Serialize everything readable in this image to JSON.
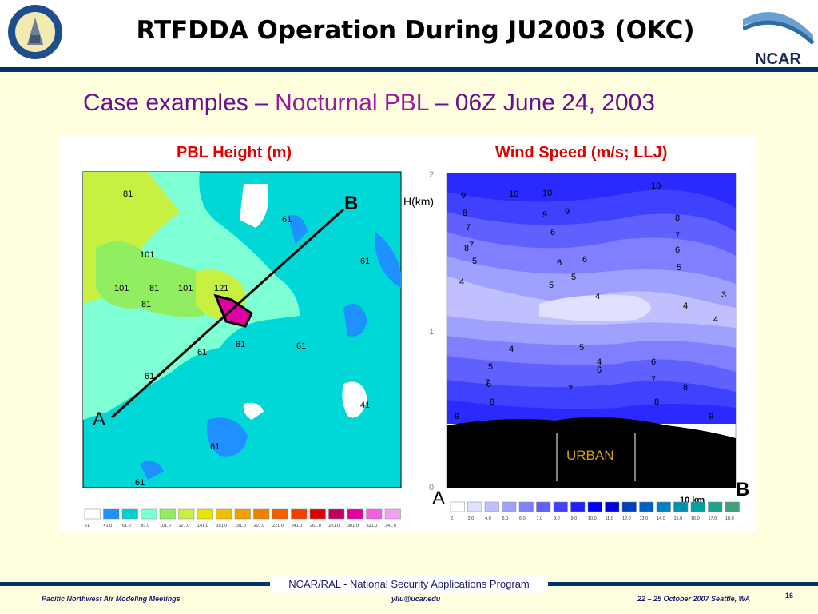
{
  "header": {
    "title": "RTFDDA Operation During JU2003 (OKC)",
    "logo_text": "NCAR"
  },
  "subtitle": {
    "part1": "Case examples – ",
    "part2": "Nocturnal PBL",
    "part3": " – 06Z June 24, 2003"
  },
  "left_panel": {
    "label": "PBL Height (m)",
    "contour_labels": [
      "81",
      "61",
      "101",
      "81",
      "101",
      "121",
      "81",
      "81",
      "61",
      "61",
      "61",
      "41",
      "61",
      "61",
      "101",
      "61"
    ],
    "endpoint_a": "A",
    "endpoint_b": "B",
    "colorbar": [
      "21.",
      "41.0",
      "61.0",
      "81.0",
      "101.0",
      "121.0",
      "141.0",
      "161.0",
      "181.0",
      "201.0",
      "221.0",
      "241.0",
      "261.0",
      "281.0",
      "301.0",
      "321.0",
      "341.0"
    ]
  },
  "right_panel": {
    "label": "Wind Speed (m/s; LLJ)",
    "y_axis_label": "H(km)",
    "y_ticks": [
      "2",
      "1",
      "0"
    ],
    "urban_label": "URBAN",
    "scale_label": "10 km",
    "endpoint_a": "A",
    "endpoint_b": "B",
    "contour_labels": [
      "9",
      "10",
      "10",
      "10",
      "8",
      "9",
      "9",
      "7",
      "8",
      "8",
      "6",
      "7",
      "7",
      "5",
      "6",
      "6",
      "6",
      "4",
      "5",
      "5",
      "5",
      "4",
      "4",
      "3",
      "4",
      "4",
      "5",
      "4",
      "5",
      "6",
      "6",
      "6",
      "7",
      "7",
      "7",
      "8",
      "8",
      "8",
      "9",
      "9",
      "6"
    ],
    "colorbar": [
      "2.",
      "3.0",
      "4.0",
      "5.0",
      "6.0",
      "7.0",
      "8.0",
      "9.0",
      "10.0",
      "11.0",
      "12.0",
      "13.0",
      "14.0",
      "15.0",
      "16.0",
      "17.0",
      "18.0"
    ]
  },
  "footer": {
    "center": "NCAR/RAL - National Security Applications Program",
    "left": "Pacific Northwest Air Modeling Meetings",
    "middle": "yliu@ucar.edu",
    "right": "22 – 25 October 2007  Seattle, WA",
    "page": "16"
  },
  "colors": {
    "pbl_scale": [
      "#ffffff",
      "#1e90ff",
      "#00ced1",
      "#7fffd4",
      "#90ee60",
      "#c8f040",
      "#e6e600",
      "#f0c000",
      "#f0a000",
      "#f08000",
      "#f06000",
      "#f04000",
      "#e00000",
      "#c00060",
      "#e000a0",
      "#f060e0",
      "#f0a0f0"
    ],
    "wind_scale": [
      "#ffffff",
      "#e0e0ff",
      "#c0c0ff",
      "#a0a0ff",
      "#8080ff",
      "#6060ff",
      "#4040ff",
      "#2020ff",
      "#0000ff",
      "#0000e0",
      "#0040c0",
      "#0060c0",
      "#0080c0",
      "#0090b0",
      "#00a0a0",
      "#20a090",
      "#40a080"
    ]
  }
}
